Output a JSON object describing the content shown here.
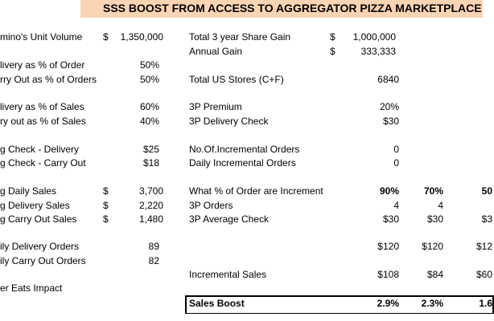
{
  "title": "SSS BOOST FROM ACCESS TO AGGREGATOR PIZZA MARKETPLACE",
  "left": [
    {
      "label": "mino's Unit Volume",
      "currency": "$",
      "value": "1,350,000"
    },
    {
      "label": "livery as % of Order",
      "value": "50%"
    },
    {
      "label": "rry Out as % of Orders",
      "value": "50%"
    },
    {
      "label": "livery as % of Sales",
      "value": "60%"
    },
    {
      "label": "ry out as % of Sales",
      "value": "40%"
    },
    {
      "label": "g Check - Delivery",
      "value": "$25"
    },
    {
      "label": "g Check - Carry Out",
      "value": "$18"
    },
    {
      "label": "g Daily Sales",
      "currency": "$",
      "value": "3,700"
    },
    {
      "label": "g Delivery Sales",
      "currency": "$",
      "value": "2,220"
    },
    {
      "label": "g Carry Out Sales",
      "currency": "$",
      "value": "1,480"
    },
    {
      "label": "ily Delivery Orders",
      "value": "89"
    },
    {
      "label": "ily Carry Out Orders",
      "value": "82"
    },
    {
      "label": "er Eats Impact"
    }
  ],
  "right": [
    {
      "label": "Total 3 year Share Gain",
      "currency": "$",
      "values": [
        "1,000,000"
      ]
    },
    {
      "label": "Annual Gain",
      "currency": "$",
      "values": [
        "333,333"
      ]
    },
    {
      "label": "Total US Stores (C+F)",
      "values": [
        "6840"
      ]
    },
    {
      "label": "3P Premium",
      "values": [
        "20%"
      ]
    },
    {
      "label": "3P Delivery Check",
      "values": [
        "$30"
      ]
    },
    {
      "label": "No.Of.Incremental Orders",
      "values": [
        "0"
      ]
    },
    {
      "label": "Daily Incremental Orders",
      "values": [
        "0"
      ]
    },
    {
      "label": "What % of Order are Increment",
      "values": [
        "90%",
        "70%",
        "50"
      ]
    },
    {
      "label": "3P Orders",
      "values": [
        "4",
        "4"
      ]
    },
    {
      "label": "3P Average Check",
      "values": [
        "$30",
        "$30",
        "$3"
      ]
    },
    {
      "values": [
        "$120",
        "$120",
        "$12"
      ]
    },
    {
      "label": "Incremental Sales",
      "values": [
        "$108",
        "$84",
        "$60"
      ]
    },
    {
      "label": "Sales Boost",
      "values": [
        "2.9%",
        "2.3%",
        "1.6"
      ]
    }
  ]
}
